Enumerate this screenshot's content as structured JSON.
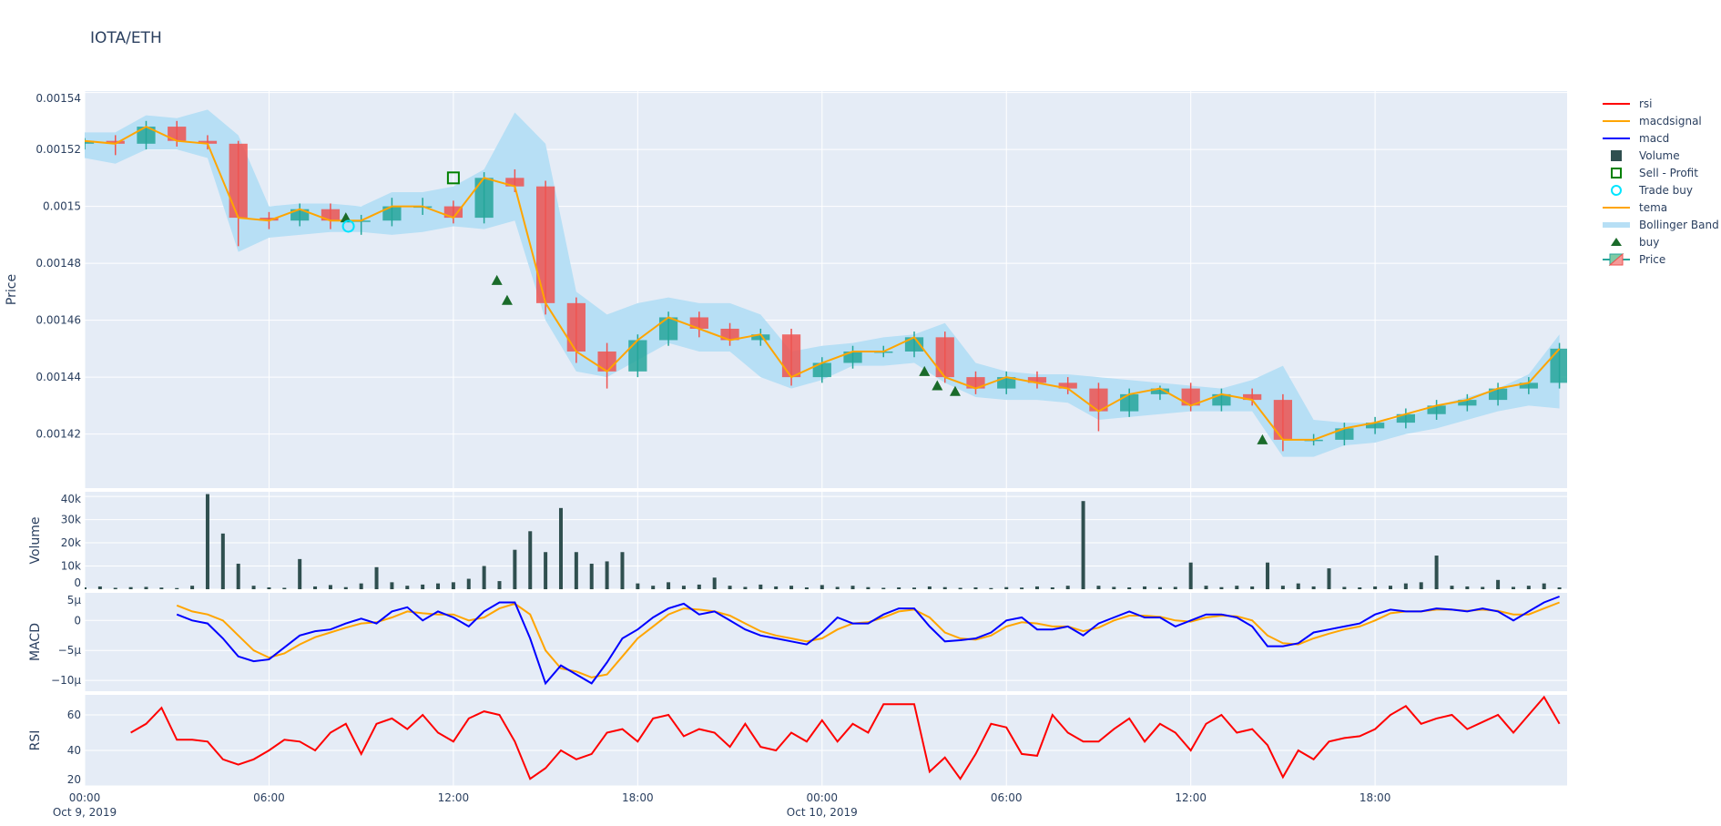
{
  "title": "IOTA/ETH",
  "colors": {
    "increasing": "#26a69a",
    "decreasing": "#ef5350",
    "tema": "#ffa500",
    "bollinger": "#b7dff5",
    "buy": "#1a6b2a",
    "trade_buy": "#00e5ff",
    "sell_profit": "#008000",
    "volume": "#2f4f4f",
    "macd": "#0000ff",
    "macdsignal": "#ffa500",
    "rsi": "#ff0000",
    "plot_bg": "#e5ecf6",
    "grid": "#ffffff"
  },
  "chart_data": {
    "type": "line",
    "x_axis": {
      "start": "2019-10-09T00:00",
      "end": "2019-10-11T00:15",
      "ticks": [
        {
          "t": "2019-10-09T00:00",
          "label": "00:00",
          "sublabel": "Oct 9, 2019"
        },
        {
          "t": "2019-10-09T06:00",
          "label": "06:00"
        },
        {
          "t": "2019-10-09T12:00",
          "label": "12:00"
        },
        {
          "t": "2019-10-09T18:00",
          "label": "18:00"
        },
        {
          "t": "2019-10-10T00:00",
          "label": "00:00",
          "sublabel": "Oct 10, 2019"
        },
        {
          "t": "2019-10-10T06:00",
          "label": "06:00"
        },
        {
          "t": "2019-10-10T12:00",
          "label": "12:00"
        },
        {
          "t": "2019-10-10T18:00",
          "label": "18:00"
        }
      ]
    },
    "legend": {
      "placement": "right",
      "items": [
        {
          "name": "rsi",
          "symbol": "line",
          "color": "#ff0000"
        },
        {
          "name": "macdsignal",
          "symbol": "line",
          "color": "#ffa500"
        },
        {
          "name": "macd",
          "symbol": "line",
          "color": "#0000ff"
        },
        {
          "name": "Volume",
          "symbol": "square",
          "color": "#2f4f4f"
        },
        {
          "name": "Sell - Profit",
          "symbol": "square-open",
          "color": "#008000"
        },
        {
          "name": "Trade buy",
          "symbol": "circle-open",
          "color": "#00e5ff"
        },
        {
          "name": "tema",
          "symbol": "line",
          "color": "#ffa500"
        },
        {
          "name": "Bollinger Band",
          "symbol": "band",
          "color": "#b7dff5"
        },
        {
          "name": "buy",
          "symbol": "triangle",
          "color": "#1a6b2a"
        },
        {
          "name": "Price",
          "symbol": "candle",
          "color": "#26a69a"
        }
      ]
    },
    "price": {
      "ylabel": "Price",
      "ylim": [
        0.001401,
        0.0015405
      ],
      "yticks": [
        {
          "v": 0.00154,
          "label": "0.00154"
        },
        {
          "v": 0.00152,
          "label": "0.00152"
        },
        {
          "v": 0.0015,
          "label": "0.0015"
        },
        {
          "v": 0.00148,
          "label": "0.00148"
        },
        {
          "v": 0.00146,
          "label": "0.00146"
        },
        {
          "v": 0.00144,
          "label": "0.00144"
        },
        {
          "v": 0.00142,
          "label": "0.00142"
        }
      ],
      "start": "2019-10-09T00:00",
      "interval_minutes": 60,
      "open": [
        0.001522,
        0.001523,
        0.001522,
        0.001528,
        0.001523,
        0.001522,
        0.001496,
        0.001495,
        0.001499,
        0.001495,
        0.001495,
        0.0015,
        0.0015,
        0.001496,
        0.00151,
        0.001507,
        0.001466,
        0.001449,
        0.001442,
        0.001453,
        0.001461,
        0.001457,
        0.001453,
        0.001455,
        0.00144,
        0.001445,
        0.001449,
        0.001449,
        0.001454,
        0.00144,
        0.001436,
        0.00144,
        0.001438,
        0.001436,
        0.001428,
        0.001434,
        0.001436,
        0.00143,
        0.001434,
        0.001432,
        0.001418,
        0.001418,
        0.001422,
        0.001424,
        0.001427,
        0.00143,
        0.001432,
        0.001436,
        0.001438
      ],
      "high": [
        0.001524,
        0.001525,
        0.00153,
        0.00153,
        0.001525,
        0.001523,
        0.001498,
        0.001501,
        0.001501,
        0.001497,
        0.001503,
        0.001503,
        0.001502,
        0.001512,
        0.001513,
        0.001509,
        0.001468,
        0.001452,
        0.001455,
        0.001463,
        0.001463,
        0.001459,
        0.001457,
        0.001457,
        0.001447,
        0.001451,
        0.001451,
        0.001456,
        0.001456,
        0.001442,
        0.001442,
        0.001442,
        0.00144,
        0.001438,
        0.001436,
        0.001437,
        0.001438,
        0.001436,
        0.001436,
        0.001434,
        0.00142,
        0.001424,
        0.001426,
        0.001429,
        0.001432,
        0.001434,
        0.001438,
        0.00144,
        0.001452
      ],
      "low": [
        0.00152,
        0.001518,
        0.00152,
        0.001521,
        0.00152,
        0.001486,
        0.001492,
        0.001493,
        0.001492,
        0.00149,
        0.001493,
        0.001497,
        0.001494,
        0.001494,
        0.001505,
        0.001462,
        0.001445,
        0.001436,
        0.00144,
        0.001451,
        0.001454,
        0.001451,
        0.001451,
        0.001437,
        0.001438,
        0.001443,
        0.001447,
        0.001447,
        0.001438,
        0.001434,
        0.001434,
        0.001436,
        0.001434,
        0.001421,
        0.001426,
        0.001432,
        0.001428,
        0.001428,
        0.00143,
        0.001414,
        0.001416,
        0.001416,
        0.00142,
        0.001422,
        0.001425,
        0.001428,
        0.00143,
        0.001434,
        0.001436
      ],
      "close": [
        0.001523,
        0.001522,
        0.001528,
        0.001523,
        0.001522,
        0.001496,
        0.001495,
        0.001499,
        0.001495,
        0.001495,
        0.0015,
        0.0015,
        0.001496,
        0.00151,
        0.001507,
        0.001466,
        0.001449,
        0.001442,
        0.001453,
        0.001461,
        0.001457,
        0.001453,
        0.001455,
        0.00144,
        0.001445,
        0.001449,
        0.001449,
        0.001454,
        0.00144,
        0.001436,
        0.00144,
        0.001438,
        0.001436,
        0.001428,
        0.001434,
        0.001436,
        0.00143,
        0.001434,
        0.001432,
        0.001418,
        0.001418,
        0.001422,
        0.001424,
        0.001427,
        0.00143,
        0.001432,
        0.001436,
        0.001438,
        0.00145
      ],
      "tema": [
        0.001523,
        0.001522,
        0.001528,
        0.001523,
        0.001522,
        0.001496,
        0.001495,
        0.001499,
        0.001495,
        0.001495,
        0.0015,
        0.0015,
        0.001496,
        0.00151,
        0.001507,
        0.001466,
        0.001449,
        0.001442,
        0.001453,
        0.001461,
        0.001457,
        0.001453,
        0.001455,
        0.00144,
        0.001445,
        0.001449,
        0.001449,
        0.001454,
        0.00144,
        0.001436,
        0.00144,
        0.001438,
        0.001436,
        0.001428,
        0.001434,
        0.001436,
        0.00143,
        0.001434,
        0.001432,
        0.001418,
        0.001418,
        0.001422,
        0.001424,
        0.001427,
        0.00143,
        0.001432,
        0.001436,
        0.001438,
        0.00145
      ],
      "bb_upper": [
        0.001526,
        0.001526,
        0.001532,
        0.001531,
        0.001534,
        0.001525,
        0.0015,
        0.001501,
        0.001501,
        0.0015,
        0.001505,
        0.001505,
        0.001507,
        0.001513,
        0.001533,
        0.001522,
        0.00147,
        0.001462,
        0.001466,
        0.001468,
        0.001466,
        0.001466,
        0.001462,
        0.001449,
        0.001451,
        0.001452,
        0.001454,
        0.001455,
        0.001459,
        0.001445,
        0.001442,
        0.001441,
        0.001441,
        0.00144,
        0.001439,
        0.001438,
        0.001437,
        0.001436,
        0.001439,
        0.001444,
        0.001425,
        0.001424,
        0.001424,
        0.001426,
        0.00143,
        0.001433,
        0.001436,
        0.001441,
        0.001455
      ],
      "bb_lower": [
        0.001517,
        0.001515,
        0.00152,
        0.00152,
        0.001517,
        0.001484,
        0.001489,
        0.00149,
        0.001491,
        0.001491,
        0.00149,
        0.001491,
        0.001493,
        0.001492,
        0.001495,
        0.00146,
        0.001442,
        0.00144,
        0.001446,
        0.001452,
        0.001449,
        0.001449,
        0.00144,
        0.001436,
        0.001439,
        0.001444,
        0.001444,
        0.001445,
        0.001438,
        0.001433,
        0.001432,
        0.001432,
        0.001431,
        0.001425,
        0.001426,
        0.001427,
        0.001428,
        0.001428,
        0.001428,
        0.001412,
        0.001412,
        0.001416,
        0.001417,
        0.00142,
        0.001422,
        0.001425,
        0.001428,
        0.00143,
        0.001429
      ],
      "buy": [
        {
          "t": "2019-10-09T08:30",
          "v": 0.001496
        },
        {
          "t": "2019-10-09T13:25",
          "v": 0.001474
        },
        {
          "t": "2019-10-09T13:45",
          "v": 0.001467
        },
        {
          "t": "2019-10-10T03:20",
          "v": 0.001442
        },
        {
          "t": "2019-10-10T03:45",
          "v": 0.001437
        },
        {
          "t": "2019-10-10T04:20",
          "v": 0.001435
        },
        {
          "t": "2019-10-10T14:20",
          "v": 0.001418
        }
      ],
      "trade_buy": [
        {
          "t": "2019-10-09T08:35",
          "v": 0.001493
        }
      ],
      "sell_profit": [
        {
          "t": "2019-10-09T12:00",
          "v": 0.00151
        }
      ]
    },
    "volume": {
      "ylabel": "Volume",
      "ylim": [
        0,
        42000
      ],
      "yticks": [
        {
          "v": 0,
          "label": "0"
        },
        {
          "v": 10000,
          "label": "10k"
        },
        {
          "v": 20000,
          "label": "20k"
        },
        {
          "v": 30000,
          "label": "30k"
        },
        {
          "v": 40000,
          "label": "40k"
        }
      ],
      "start": "2019-10-09T00:00",
      "interval_minutes": 30,
      "values": [
        800,
        1200,
        600,
        900,
        1000,
        700,
        500,
        1500,
        41000,
        24000,
        11000,
        1500,
        800,
        600,
        13000,
        1200,
        1800,
        900,
        2500,
        9500,
        3000,
        1500,
        2000,
        2500,
        3000,
        4500,
        10000,
        3500,
        17000,
        25000,
        16000,
        35000,
        16000,
        11000,
        12000,
        16000,
        2500,
        1500,
        3000,
        1500,
        2000,
        5000,
        1500,
        1000,
        2000,
        1200,
        1500,
        800,
        1800,
        1000,
        1500,
        900,
        600,
        800,
        700,
        1200,
        900,
        600,
        800,
        500,
        900,
        700,
        1200,
        800,
        1500,
        38000,
        1500,
        1000,
        800,
        1200,
        900,
        1000,
        11500,
        1500,
        900,
        1500,
        1200,
        11500,
        1500,
        2500,
        1200,
        9000,
        1000,
        800,
        1200,
        1500,
        2500,
        3000,
        14500,
        1500,
        1200,
        1000,
        4000,
        1000,
        1500,
        2500,
        800
      ]
    },
    "macd": {
      "ylabel": "MACD",
      "ylim": [
        -1.18e-05,
        4.6e-06
      ],
      "yticks": [
        {
          "v": 5e-06,
          "label": "5μ"
        },
        {
          "v": 0,
          "label": "0"
        },
        {
          "v": -5e-06,
          "label": "−5μ"
        },
        {
          "v": -1e-05,
          "label": "−10μ"
        }
      ],
      "start": "2019-10-09T03:00",
      "interval_minutes": 30,
      "series": [
        {
          "name": "macd",
          "values": [
            1e-06,
            0,
            -5e-07,
            -3e-06,
            -6e-06,
            -6.8e-06,
            -6.5e-06,
            -4.5e-06,
            -2.5e-06,
            -1.8e-06,
            -1.5e-06,
            -5e-07,
            3e-07,
            -5e-07,
            1.5e-06,
            2.2e-06,
            0,
            1.5e-06,
            5e-07,
            -1e-06,
            1.5e-06,
            3e-06,
            3e-06,
            -3e-06,
            -1.05e-05,
            -7.5e-06,
            -9e-06,
            -1.05e-05,
            -7e-06,
            -3e-06,
            -1.5e-06,
            5e-07,
            2e-06,
            2.8e-06,
            1e-06,
            1.5e-06,
            0,
            -1.5e-06,
            -2.5e-06,
            -3e-06,
            -3.5e-06,
            -4e-06,
            -2e-06,
            5e-07,
            -5e-07,
            -5e-07,
            1e-06,
            2e-06,
            2e-06,
            -1e-06,
            -3.5e-06,
            -3.3e-06,
            -3e-06,
            -2e-06,
            0,
            5e-07,
            -1.5e-06,
            -1.5e-06,
            -1e-06,
            -2.5e-06,
            -5e-07,
            5e-07,
            1.5e-06,
            5e-07,
            5e-07,
            -1e-06,
            0,
            1e-06,
            1e-06,
            5e-07,
            -1e-06,
            -4.3e-06,
            -4.3e-06,
            -3.8e-06,
            -2e-06,
            -1.5e-06,
            -1e-06,
            -5e-07,
            1e-06,
            1.8e-06,
            1.5e-06,
            1.5e-06,
            2e-06,
            1.8e-06,
            1.5e-06,
            2e-06,
            1.5e-06,
            0,
            1.5e-06,
            3e-06,
            4e-06
          ]
        },
        {
          "name": "macdsignal",
          "values": [
            2.5e-06,
            1.5e-06,
            1e-06,
            0,
            -2.5e-06,
            -5e-06,
            -6.2e-06,
            -5.5e-06,
            -4e-06,
            -2.8e-06,
            -2e-06,
            -1.2e-06,
            -5e-07,
            -3e-07,
            5e-07,
            1.5e-06,
            1.2e-06,
            1e-06,
            1e-06,
            0,
            5e-07,
            2e-06,
            2.8e-06,
            1e-06,
            -5e-06,
            -8e-06,
            -8.5e-06,
            -9.5e-06,
            -9e-06,
            -6e-06,
            -3e-06,
            -1e-06,
            1e-06,
            2e-06,
            1.8e-06,
            1.5e-06,
            8e-07,
            -5e-07,
            -1.8e-06,
            -2.5e-06,
            -3e-06,
            -3.5e-06,
            -3e-06,
            -1.5e-06,
            -5e-07,
            -3e-07,
            5e-07,
            1.5e-06,
            1.8e-06,
            5e-07,
            -2e-06,
            -3e-06,
            -3.2e-06,
            -2.5e-06,
            -1e-06,
            -3e-07,
            -5e-07,
            -1e-06,
            -1e-06,
            -1.8e-06,
            -1.2e-06,
            0,
            8e-07,
            8e-07,
            6e-07,
            0,
            -2e-07,
            5e-07,
            8e-07,
            7e-07,
            0,
            -2.5e-06,
            -3.8e-06,
            -4e-06,
            -3e-06,
            -2.2e-06,
            -1.5e-06,
            -1e-06,
            0,
            1.2e-06,
            1.5e-06,
            1.5e-06,
            1.8e-06,
            1.8e-06,
            1.6e-06,
            1.8e-06,
            1.6e-06,
            1e-06,
            1e-06,
            2e-06,
            3e-06
          ]
        }
      ]
    },
    "rsi": {
      "ylabel": "RSI",
      "ylim": [
        20,
        71.3
      ],
      "yticks": [
        {
          "v": 20,
          "label": "20"
        },
        {
          "v": 40,
          "label": "40"
        },
        {
          "v": 60,
          "label": "60"
        }
      ],
      "start": "2019-10-09T01:30",
      "interval_minutes": 30,
      "values": [
        50,
        55,
        64,
        46,
        46,
        45,
        35,
        32,
        35,
        40,
        46,
        45,
        40,
        50,
        55,
        38,
        55,
        58,
        52,
        60,
        50,
        45,
        58,
        62,
        60,
        45,
        24,
        30,
        40,
        35,
        38,
        50,
        52,
        45,
        58,
        60,
        48,
        52,
        50,
        42,
        55,
        42,
        40,
        50,
        45,
        57,
        45,
        55,
        50,
        66,
        66,
        66,
        28,
        36,
        24,
        38,
        55,
        53,
        38,
        37,
        60,
        50,
        45,
        45,
        52,
        58,
        45,
        55,
        50,
        40,
        55,
        60,
        50,
        52,
        43,
        25,
        40,
        35,
        45,
        47,
        48,
        52,
        60,
        65,
        55,
        58,
        60,
        52,
        56,
        60,
        50,
        60,
        70,
        55
      ]
    }
  }
}
